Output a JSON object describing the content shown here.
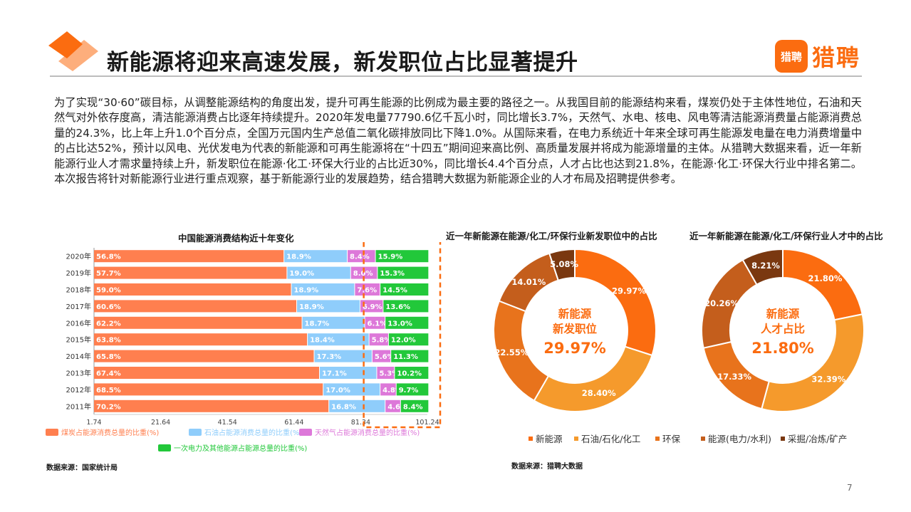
{
  "header": {
    "title": "新能源将迎来高速发展，新发职位占比显著提升",
    "brand_badge": "猎聘",
    "brand_name": "猎聘"
  },
  "intro": "为了实现“30·60”碳目标，从调整能源结构的角度出发，提升可再生能源的比例成为最主要的路径之一。从我国目前的能源结构来看，煤炭仍处于主体性地位，石油和天然气对外依存度高，清洁能源消费占比逐年持续提升。2020年发电量77790.6亿千瓦小时，同比增长3.7%，天然气、水电、核电、风电等清洁能源消费量占能源消费总量的24.3%，比上年上升1.0个百分点，全国万元国内生产总值二氧化碳排放同比下降1.0%。从国际来看，在电力系统近十年来全球可再生能源发电量在电力消费增量中的占比达52%，预计以风电、光伏发电为代表的新能源和可再生能源将在“十四五”期间迎来高比例、高质量发展并将成为能源增量的主体。从猎聘大数据来看，近一年新能源行业人才需求量持续上升，新发职位在能源·化工·环保大行业的占比近30%，同比增长4.4个百分点，人才占比也达到21.8%，在能源·化工·环保大行业中排名第二。本次报告将针对新能源行业进行重点观察，基于新能源行业的发展趋势，结合猎聘大数据为新能源企业的人才布局及招聘提供参考。",
  "colors": {
    "accent": "#fb6c10",
    "coal": "#ff7f4f",
    "oil": "#8fcdfb",
    "gas": "#dd78d9",
    "clean": "#22c83a",
    "donut_1": "#fb6c10",
    "donut_2": "#f59a2c",
    "donut_3": "#e8731c",
    "donut_4": "#c45e1c",
    "donut_5": "#7a3810"
  },
  "chart_data": [
    {
      "type": "bar",
      "orientation": "horizontal",
      "stacked": true,
      "title": "中国能源消费结构近十年变化",
      "categories": [
        "2020年",
        "2019年",
        "2018年",
        "2017年",
        "2016年",
        "2015年",
        "2014年",
        "2013年",
        "2012年",
        "2011年"
      ],
      "series": [
        {
          "name": "煤炭占能源消费总量的比重(%)",
          "values": [
            56.8,
            57.7,
            59.0,
            60.6,
            62.2,
            63.8,
            65.8,
            67.4,
            68.5,
            70.2
          ]
        },
        {
          "name": "石油占能源消费总量的比重(%)",
          "values": [
            18.9,
            19.0,
            18.9,
            18.9,
            18.7,
            18.4,
            17.3,
            17.1,
            17.0,
            16.8
          ]
        },
        {
          "name": "天然气占能源消费总量的比重(%)",
          "values": [
            8.4,
            8.0,
            7.6,
            6.9,
            6.1,
            5.8,
            5.6,
            5.3,
            4.8,
            4.6
          ]
        },
        {
          "name": "一次电力及其他能源占能源总量的比重(%)",
          "values": [
            15.9,
            15.3,
            14.5,
            13.6,
            13.0,
            12.0,
            11.3,
            10.2,
            9.7,
            8.4
          ]
        }
      ],
      "data_labels": [
        [
          "56.8%",
          "57.7%",
          "59.0%",
          "60.6%",
          "62.2%",
          "63.8%",
          "65.8%",
          "67.4%",
          "68.5%",
          "70.2%"
        ],
        [
          "18.9%",
          "19.0%",
          "18.9%",
          "18.9%",
          "18.7%",
          "18.4%",
          "17.3%",
          "17.1%",
          "17.0%",
          "16.8%"
        ],
        [
          "8.4%",
          "8.0%",
          "7.6%",
          "6.9%",
          "6.1%",
          "5.8%",
          "5.6%",
          "5.3%",
          "4.8%",
          "4.6%"
        ],
        [
          "15.9%",
          "15.3%",
          "14.5%",
          "13.6%",
          "13.0%",
          "12.0%",
          "11.3%",
          "10.2%",
          "9.7%",
          "8.4%"
        ]
      ],
      "xticks": [
        "1.74",
        "21.64",
        "41.54",
        "61.44",
        "81.34",
        "101.24"
      ],
      "xlim": [
        1.74,
        101.24
      ],
      "source": "数据来源：国家统计局"
    },
    {
      "type": "pie",
      "donut": true,
      "title": "近一年新能源在能源/化工/环保行业新发职位中的占比",
      "center_lines": [
        "新能源",
        "新发职位"
      ],
      "center_value": "29.97%",
      "labels": [
        "新能源",
        "石油/石化/化工",
        "环保",
        "能源(电力/水利)",
        "采掘/冶炼/矿产"
      ],
      "values": [
        29.97,
        28.4,
        22.55,
        14.01,
        5.08
      ],
      "value_labels": [
        "29.97%",
        "28.40%",
        "22.55%",
        "14.01%",
        "5.08%"
      ]
    },
    {
      "type": "pie",
      "donut": true,
      "title": "近一年新能源在能源/化工/环保行业人才中的占比",
      "center_lines": [
        "新能源",
        "人才占比"
      ],
      "center_value": "21.80%",
      "labels": [
        "新能源",
        "石油/石化/化工",
        "环保",
        "能源(电力/水利)",
        "采掘/冶炼/矿产"
      ],
      "values": [
        21.8,
        32.39,
        17.33,
        20.26,
        8.21
      ],
      "value_labels": [
        "21.80%",
        "32.39%",
        "17.33%",
        "20.26%",
        "8.21%"
      ]
    }
  ],
  "donut_legend": [
    "新能源",
    "石油/石化/化工",
    "环保",
    "能源(电力/水利)",
    "采掘/冶炼/矿产"
  ],
  "donut_source": "数据来源：猎聘大数据",
  "page_number": "7"
}
